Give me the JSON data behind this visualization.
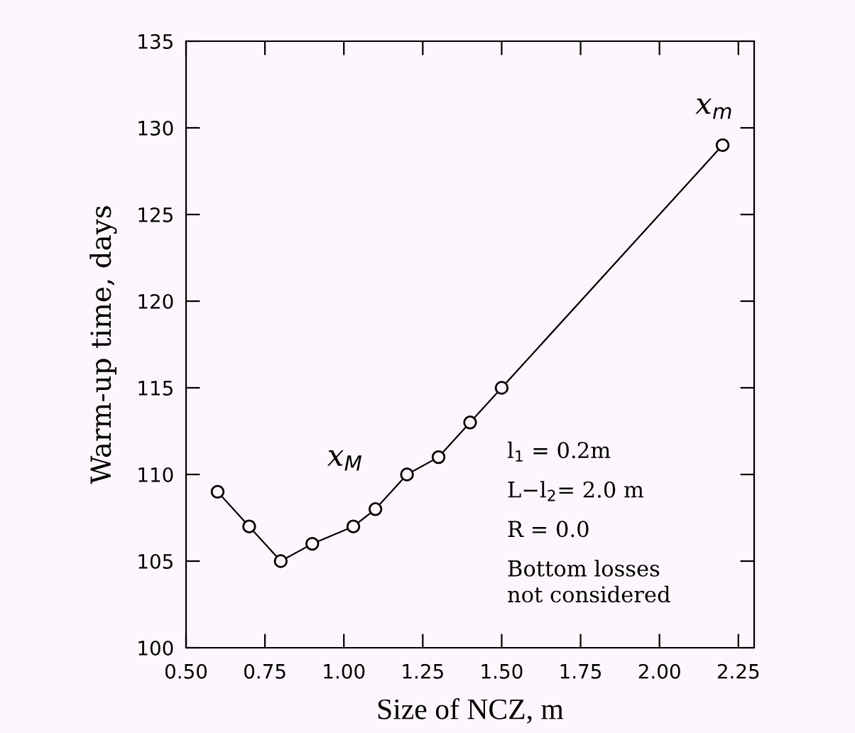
{
  "chart_data": {
    "type": "line",
    "xlabel": "Size of NCZ, m",
    "ylabel": "Warm-up time, days",
    "x": [
      0.6,
      0.7,
      0.8,
      0.9,
      1.03,
      1.1,
      1.2,
      1.3,
      1.4,
      1.5,
      2.2
    ],
    "series": [
      {
        "color": "#000000",
        "values": [
          109,
          107,
          105,
          106,
          107,
          108,
          110,
          111,
          113,
          115,
          129
        ]
      }
    ],
    "xlim": [
      0.5,
      2.3
    ],
    "xticks": [
      {
        "value": 0.5,
        "label": "0.50"
      },
      {
        "value": 0.75,
        "label": "0.75"
      },
      {
        "value": 1.0,
        "label": "1.00"
      },
      {
        "value": 1.25,
        "label": "1.25"
      },
      {
        "value": 1.5,
        "label": "1.50"
      },
      {
        "value": 1.75,
        "label": "1.75"
      },
      {
        "value": 2.0,
        "label": "2.00"
      },
      {
        "value": 2.25,
        "label": "2.25"
      }
    ],
    "ylim": [
      100,
      135
    ],
    "yticks": [
      100,
      105,
      110,
      115,
      120,
      125,
      130,
      135
    ],
    "marker": "circle",
    "line_style": "solid",
    "grid": false,
    "legend": false,
    "annotations": [
      "x$_{M}$",
      "x$_{m}$",
      "l$_{1}$ = 0.2m",
      "L−l$_{2}$= 2.0 m",
      "R = 0.0",
      "Bottom losses\nnot considered"
    ]
  }
}
